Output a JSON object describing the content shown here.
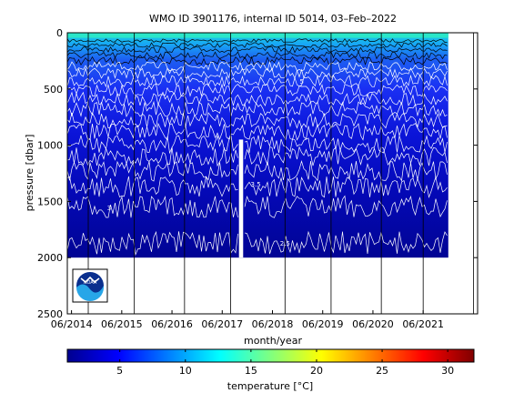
{
  "chart_data": {
    "type": "heatmap",
    "title": "WMO ID 3901176, internal ID 5014, 03–Feb–2022",
    "xlabel": "month/year",
    "ylabel": "pressure [dbar]",
    "colorbar_label": "temperature [°C]",
    "x_ticks": [
      "06/2014",
      "06/2015",
      "06/2016",
      "06/2017",
      "06/2018",
      "06/2019",
      "06/2020",
      "06/2021"
    ],
    "y_ticks": [
      "0",
      "500",
      "1000",
      "1500",
      "2000",
      "2500"
    ],
    "ylim": [
      0,
      2500
    ],
    "y_reversed": true,
    "colorbar_ticks": [
      "5",
      "10",
      "15",
      "20",
      "25",
      "30"
    ],
    "colorbar_range": [
      1,
      32
    ],
    "colormap": "jet",
    "profile_start": "05/2014",
    "profile_end": "12/2021",
    "max_depth_dbar": 2000,
    "gap": {
      "start": "10/2017",
      "end": "11/2017"
    },
    "vertical_lines": [
      "10/2014",
      "09/2015",
      "09/2016",
      "08/2017",
      "09/2018",
      "08/2019",
      "08/2020",
      "06/2021",
      "06/2022"
    ],
    "isotherm_labels": [
      {
        "text": "5",
        "x": "01/2019",
        "y": 430
      },
      {
        "text": "3.5",
        "x": "02/2018",
        "y": 1345
      },
      {
        "text": "3",
        "x": "03/2015",
        "y": 1555
      },
      {
        "text": "2.5",
        "x": "09/2018",
        "y": 1870
      }
    ],
    "isotherm_depths_dbar": [
      70,
      110,
      150,
      200,
      250,
      300,
      360,
      430,
      510,
      590,
      680,
      780,
      880,
      990,
      1100,
      1230,
      1370,
      1550,
      1870
    ]
  },
  "logo": {
    "text": "NOAA"
  }
}
